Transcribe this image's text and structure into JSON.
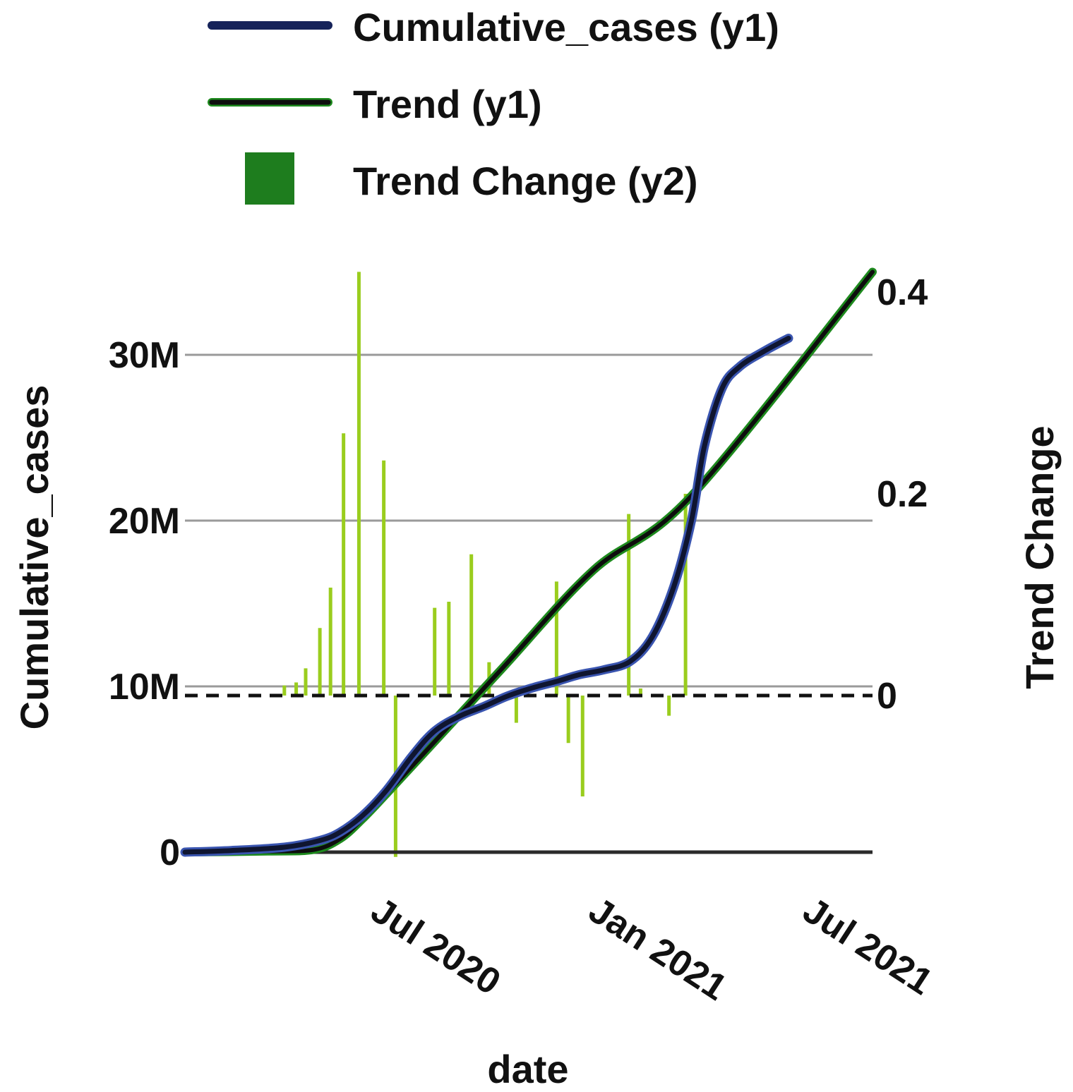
{
  "chart_data": {
    "type": "line",
    "title": "",
    "legend": {
      "placement": "top",
      "items": [
        {
          "label": "Cumulative_cases (y1)",
          "color": "#16235a",
          "kind": "line"
        },
        {
          "label": "Trend (y1)",
          "color": "#1e8a1e",
          "kind": "line"
        },
        {
          "label": "Trend Change (y2)",
          "color": "#1e7d1e",
          "kind": "square"
        }
      ]
    },
    "xlabel": "date",
    "ylabel": "Cumulative_cases",
    "y2label": "Trend Change",
    "xlim": [
      "2020-01-22",
      "2021-08-25"
    ],
    "xticks": [
      {
        "date": "2020-07-01",
        "label": "Jul 2020"
      },
      {
        "date": "2021-01-01",
        "label": "Jan 2021"
      },
      {
        "date": "2021-07-01",
        "label": "Jul 2021"
      }
    ],
    "y1lim": [
      0,
      38000000
    ],
    "y1ticks": [
      {
        "value": 0,
        "label": "0"
      },
      {
        "value": 10000000,
        "label": "10M"
      },
      {
        "value": 20000000,
        "label": "20M"
      },
      {
        "value": 30000000,
        "label": "30M"
      }
    ],
    "y2lim": [
      -0.15,
      0.43
    ],
    "y2ticks": [
      {
        "value": 0,
        "label": "0"
      },
      {
        "value": 0.2,
        "label": "0.2"
      },
      {
        "value": 0.4,
        "label": "0.4"
      }
    ],
    "grid": "horizontal",
    "series": [
      {
        "name": "Cumulative_cases (y1)",
        "axis": "y1",
        "color": "#16235a",
        "points": [
          {
            "x": "2020-01-22",
            "y": 0
          },
          {
            "x": "2020-03-01",
            "y": 100000
          },
          {
            "x": "2020-04-15",
            "y": 300000
          },
          {
            "x": "2020-05-15",
            "y": 700000
          },
          {
            "x": "2020-06-01",
            "y": 1200000
          },
          {
            "x": "2020-06-20",
            "y": 2200000
          },
          {
            "x": "2020-07-10",
            "y": 3700000
          },
          {
            "x": "2020-08-01",
            "y": 5800000
          },
          {
            "x": "2020-08-20",
            "y": 7300000
          },
          {
            "x": "2020-09-10",
            "y": 8200000
          },
          {
            "x": "2020-10-01",
            "y": 8800000
          },
          {
            "x": "2020-10-20",
            "y": 9400000
          },
          {
            "x": "2020-11-10",
            "y": 9900000
          },
          {
            "x": "2020-12-01",
            "y": 10300000
          },
          {
            "x": "2020-12-20",
            "y": 10700000
          },
          {
            "x": "2021-01-10",
            "y": 11000000
          },
          {
            "x": "2021-02-01",
            "y": 11500000
          },
          {
            "x": "2021-02-20",
            "y": 13000000
          },
          {
            "x": "2021-03-10",
            "y": 16000000
          },
          {
            "x": "2021-03-25",
            "y": 20000000
          },
          {
            "x": "2021-04-05",
            "y": 24500000
          },
          {
            "x": "2021-04-20",
            "y": 28000000
          },
          {
            "x": "2021-05-05",
            "y": 29300000
          },
          {
            "x": "2021-05-25",
            "y": 30200000
          },
          {
            "x": "2021-06-15",
            "y": 31000000
          }
        ]
      },
      {
        "name": "Trend (y1)",
        "axis": "y1",
        "color": "#1e8a1e",
        "points": [
          {
            "x": "2020-01-22",
            "y": 0
          },
          {
            "x": "2020-04-01",
            "y": 50000
          },
          {
            "x": "2020-05-10",
            "y": 150000
          },
          {
            "x": "2020-06-01",
            "y": 800000
          },
          {
            "x": "2020-06-20",
            "y": 2000000
          },
          {
            "x": "2020-07-10",
            "y": 3500000
          },
          {
            "x": "2020-08-01",
            "y": 5200000
          },
          {
            "x": "2020-10-15",
            "y": 11000000
          },
          {
            "x": "2021-01-01",
            "y": 17000000
          },
          {
            "x": "2021-03-25",
            "y": 21500000
          },
          {
            "x": "2021-08-25",
            "y": 35000000
          }
        ]
      }
    ],
    "bars": {
      "name": "Trend Change (y2)",
      "axis": "y2",
      "color": "#9acd1e",
      "items": [
        {
          "x": "2020-04-15",
          "value": 0.01
        },
        {
          "x": "2020-04-25",
          "value": 0.013
        },
        {
          "x": "2020-05-03",
          "value": 0.027
        },
        {
          "x": "2020-05-15",
          "value": 0.067
        },
        {
          "x": "2020-05-24",
          "value": 0.107
        },
        {
          "x": "2020-06-04",
          "value": 0.26
        },
        {
          "x": "2020-06-17",
          "value": 0.42
        },
        {
          "x": "2020-07-08",
          "value": 0.233
        },
        {
          "x": "2020-07-18",
          "value": -0.16
        },
        {
          "x": "2020-08-20",
          "value": 0.087
        },
        {
          "x": "2020-09-01",
          "value": 0.093
        },
        {
          "x": "2020-09-20",
          "value": 0.14
        },
        {
          "x": "2020-10-05",
          "value": 0.033
        },
        {
          "x": "2020-10-28",
          "value": -0.027
        },
        {
          "x": "2020-12-01",
          "value": 0.113
        },
        {
          "x": "2020-12-11",
          "value": -0.047
        },
        {
          "x": "2020-12-23",
          "value": -0.1
        },
        {
          "x": "2021-01-31",
          "value": 0.18
        },
        {
          "x": "2021-02-10",
          "value": 0.007
        },
        {
          "x": "2021-03-06",
          "value": -0.02
        },
        {
          "x": "2021-03-20",
          "value": 0.2
        }
      ]
    }
  }
}
